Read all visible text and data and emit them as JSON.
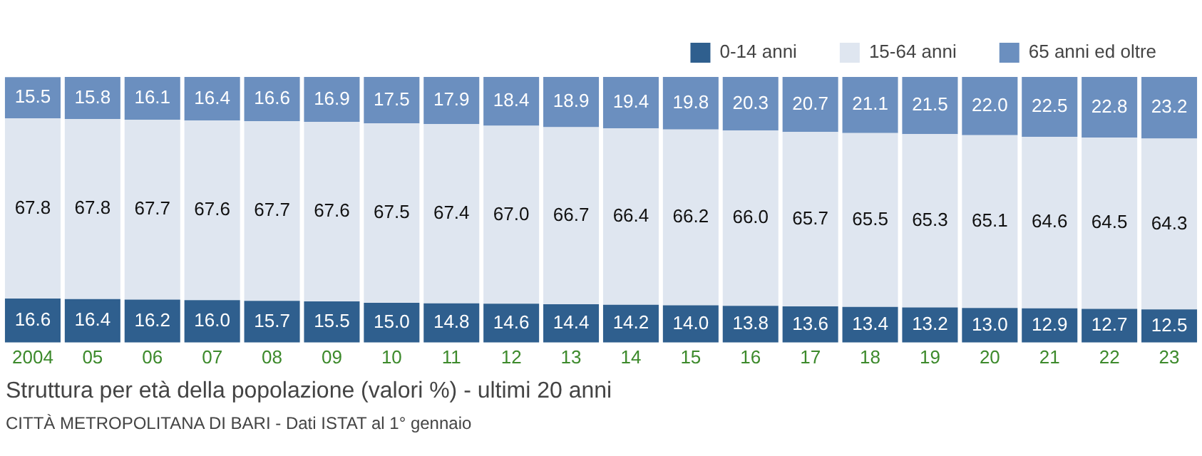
{
  "chart_data": {
    "type": "bar",
    "stacked": true,
    "title": "Struttura per età della popolazione (valori %) - ultimi 20 anni",
    "annotations": [
      "CITTÀ METROPOLITANA DI BARI - Dati ISTAT al 1° gennaio"
    ],
    "categories": [
      "2004",
      "05",
      "06",
      "07",
      "08",
      "09",
      "10",
      "11",
      "12",
      "13",
      "14",
      "15",
      "16",
      "17",
      "18",
      "19",
      "20",
      "21",
      "22",
      "23"
    ],
    "series": [
      {
        "name": "0-14 anni",
        "color": "#2f5f8e",
        "values": [
          16.6,
          16.4,
          16.2,
          16.0,
          15.7,
          15.5,
          15.0,
          14.8,
          14.6,
          14.4,
          14.2,
          14.0,
          13.8,
          13.6,
          13.4,
          13.2,
          13.0,
          12.9,
          12.7,
          12.5
        ],
        "value_labels": [
          "16.6",
          "16.4",
          "16.2",
          "16.0",
          "15.7",
          "15.5",
          "15.0",
          "14.8",
          "14.6",
          "14.4",
          "14.2",
          "14.0",
          "13.8",
          "13.6",
          "13.4",
          "13.2",
          "13.0",
          "12.9",
          "12.7",
          "12.5"
        ]
      },
      {
        "name": "15-64 anni",
        "color": "#dfe6f0",
        "values": [
          67.8,
          67.8,
          67.7,
          67.6,
          67.7,
          67.6,
          67.5,
          67.4,
          67.0,
          66.7,
          66.4,
          66.2,
          66.0,
          65.7,
          65.5,
          65.3,
          65.1,
          64.6,
          64.5,
          64.3
        ],
        "value_labels": [
          "67.8",
          "67.8",
          "67.7",
          "67.6",
          "67.7",
          "67.6",
          "67.5",
          "67.4",
          "67.0",
          "66.7",
          "66.4",
          "66.2",
          "66.0",
          "65.7",
          "65.5",
          "65.3",
          "65.1",
          "64.6",
          "64.5",
          "64.3"
        ]
      },
      {
        "name": "65 anni ed oltre",
        "color": "#6b8fbf",
        "values": [
          15.5,
          15.8,
          16.1,
          16.4,
          16.6,
          16.9,
          17.5,
          17.9,
          18.4,
          18.9,
          19.4,
          19.8,
          20.3,
          20.7,
          21.1,
          21.5,
          22.0,
          22.5,
          22.8,
          23.2
        ],
        "value_labels": [
          "15.5",
          "15.8",
          "16.1",
          "16.4",
          "16.6",
          "16.9",
          "17.5",
          "17.9",
          "18.4",
          "18.9",
          "19.4",
          "19.8",
          "20.3",
          "20.7",
          "21.1",
          "21.5",
          "22.0",
          "22.5",
          "22.8",
          "23.2"
        ]
      }
    ],
    "ylim": [
      0,
      100
    ],
    "tick_labels": "x",
    "legend": "top",
    "grid": false
  }
}
